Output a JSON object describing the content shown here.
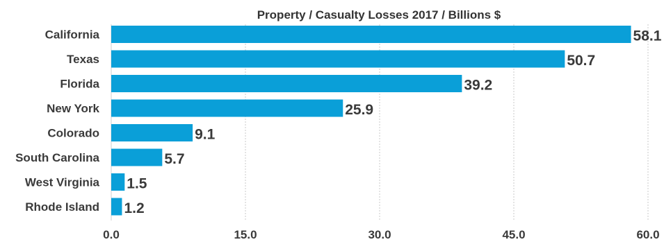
{
  "chart_data": {
    "type": "bar",
    "orientation": "horizontal",
    "title": "Property / Casualty Losses 2017 / Billions $",
    "categories": [
      "California",
      "Texas",
      "Florida",
      "New York",
      "Colorado",
      "South Carolina",
      "West Virginia",
      "Rhode Island"
    ],
    "values": [
      58.1,
      50.7,
      39.2,
      25.9,
      9.1,
      5.7,
      1.5,
      1.2
    ],
    "value_labels": [
      "58.1",
      "50.7",
      "39.2",
      "25.9",
      "9.1",
      "5.7",
      "1.5",
      "1.2"
    ],
    "xticks": [
      "0.0",
      "15.0",
      "30.0",
      "45.0",
      "60.0"
    ],
    "xtick_values": [
      0,
      15,
      30,
      45,
      60
    ],
    "xlim": [
      0,
      60
    ],
    "xlabel": "",
    "ylabel": "",
    "grid": true,
    "bar_color": "#0a9fd8"
  }
}
